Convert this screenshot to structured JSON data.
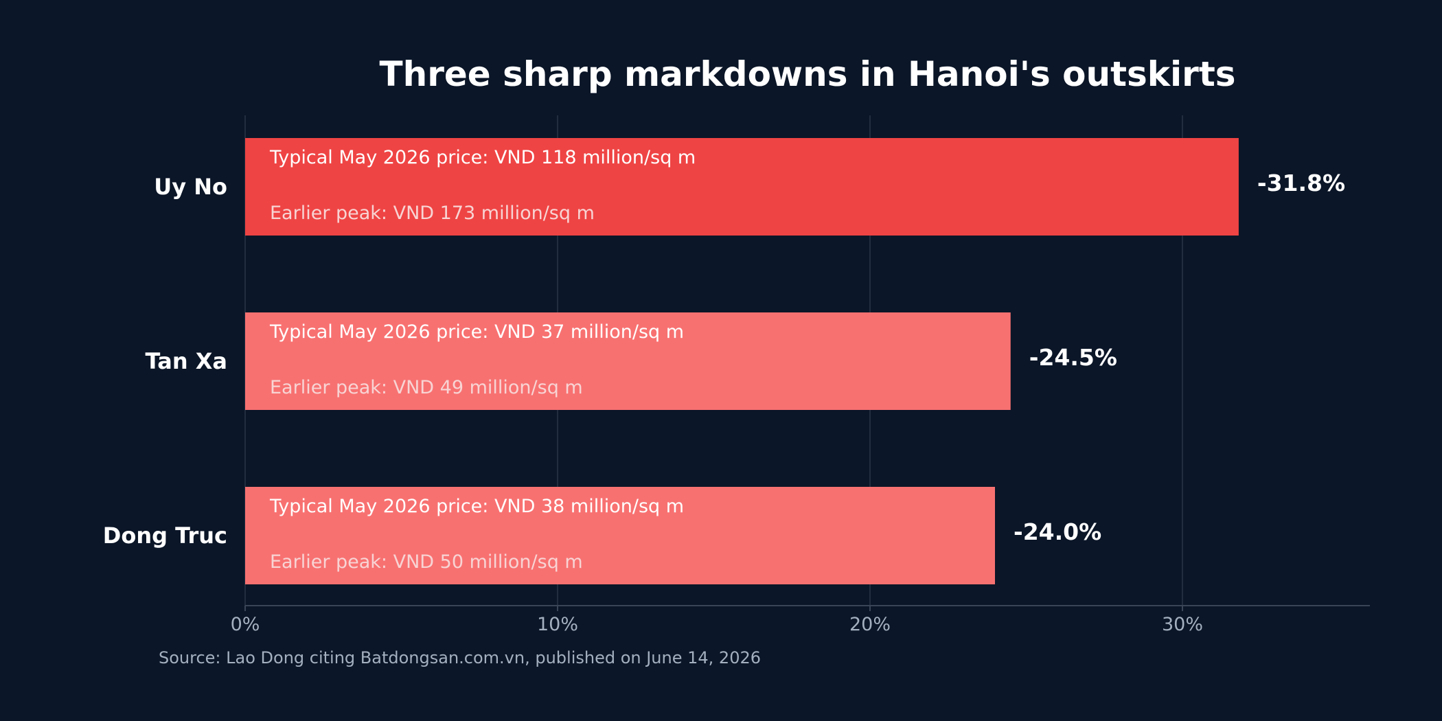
{
  "chart_data": {
    "type": "bar",
    "orientation": "horizontal",
    "title": "Three sharp markdowns in Hanoi's outskirts",
    "categories": [
      "Uy No",
      "Tan Xa",
      "Dong Truc"
    ],
    "values": [
      31.8,
      24.5,
      24.0
    ],
    "value_labels": [
      "-31.8%",
      "-24.5%",
      "-24.0%"
    ],
    "notes": [
      {
        "current": "Typical May 2026 price: VND 118 million/sq m",
        "peak": "Earlier peak: VND 173 million/sq m"
      },
      {
        "current": "Typical May 2026 price: VND 37 million/sq m",
        "peak": "Earlier peak: VND 49 million/sq m"
      },
      {
        "current": "Typical May 2026 price: VND 38 million/sq m",
        "peak": "Earlier peak: VND 50 million/sq m"
      }
    ],
    "xlim": [
      0,
      36
    ],
    "xticks": [
      0,
      10,
      20,
      30
    ],
    "xtick_labels": [
      "0%",
      "10%",
      "20%",
      "30%"
    ],
    "xlabel": "",
    "ylabel": "",
    "grid": "vertical",
    "legend": "none",
    "colors": {
      "highlight_bar": "#ef4444",
      "bar": "#f87171",
      "background": "#0b1628"
    },
    "source": "Source: Lao Dong citing Batdongsan.com.vn, published on June 14, 2026"
  }
}
